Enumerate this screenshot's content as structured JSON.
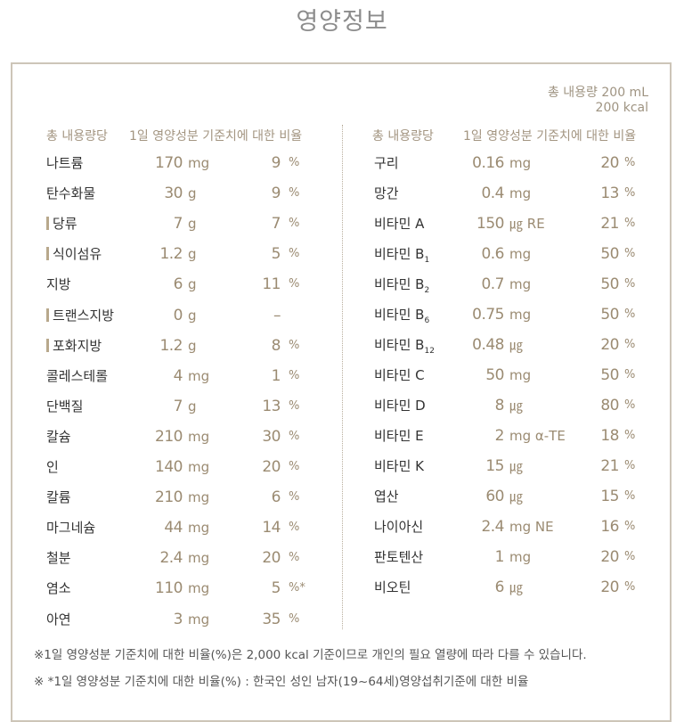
{
  "title": "영양정보",
  "total": {
    "volume": "총 내용량 200 mL",
    "energy": "200 kcal"
  },
  "header": {
    "per": "총 내용량당",
    "ratio": "1일 영양성분 기준치에 대한 비율"
  },
  "left": [
    {
      "name": "나트륨",
      "num": "170",
      "unit": "mg",
      "pct": "9",
      "sign": "%"
    },
    {
      "name": "탄수화물",
      "num": "30",
      "unit": "g",
      "pct": "9",
      "sign": "%"
    },
    {
      "name": "당류",
      "bar": true,
      "num": "7",
      "unit": "g",
      "pct": "7",
      "sign": "%"
    },
    {
      "name": "식이섬유",
      "bar": true,
      "num": "1.2",
      "unit": "g",
      "pct": "5",
      "sign": "%"
    },
    {
      "name": "지방",
      "num": "6",
      "unit": "g",
      "pct": "11",
      "sign": "%"
    },
    {
      "name": "트랜스지방",
      "bar": true,
      "num": "0",
      "unit": "g",
      "pct": "–",
      "sign": ""
    },
    {
      "name": "포화지방",
      "bar": true,
      "num": "1.2",
      "unit": "g",
      "pct": "8",
      "sign": "%"
    },
    {
      "name": "콜레스테롤",
      "num": "4",
      "unit": "mg",
      "pct": "1",
      "sign": "%"
    },
    {
      "name": "단백질",
      "num": "7",
      "unit": "g",
      "pct": "13",
      "sign": "%"
    },
    {
      "name": "칼슘",
      "num": "210",
      "unit": "mg",
      "pct": "30",
      "sign": "%"
    },
    {
      "name": "인",
      "num": "140",
      "unit": "mg",
      "pct": "20",
      "sign": "%"
    },
    {
      "name": "칼륨",
      "num": "210",
      "unit": "mg",
      "pct": "6",
      "sign": "%"
    },
    {
      "name": "마그네슘",
      "num": "44",
      "unit": "mg",
      "pct": "14",
      "sign": "%"
    },
    {
      "name": "철분",
      "num": "2.4",
      "unit": "mg",
      "pct": "20",
      "sign": "%"
    },
    {
      "name": "염소",
      "num": "110",
      "unit": "mg",
      "pct": "5",
      "sign": "%*"
    },
    {
      "name": "아연",
      "num": "3",
      "unit": "mg",
      "pct": "35",
      "sign": "%"
    }
  ],
  "right": [
    {
      "name": "구리",
      "num": "0.16",
      "unit": "mg",
      "pct": "20",
      "sign": "%"
    },
    {
      "name": "망간",
      "num": "0.4",
      "unit": "mg",
      "pct": "13",
      "sign": "%"
    },
    {
      "name": "비타민 A",
      "num": "150",
      "unit": "㎍ RE",
      "pct": "21",
      "sign": "%"
    },
    {
      "name": "비타민 B",
      "sub": "1",
      "num": "0.6",
      "unit": "mg",
      "pct": "50",
      "sign": "%"
    },
    {
      "name": "비타민 B",
      "sub": "2",
      "num": "0.7",
      "unit": "mg",
      "pct": "50",
      "sign": "%"
    },
    {
      "name": "비타민 B",
      "sub": "6",
      "num": "0.75",
      "unit": "mg",
      "pct": "50",
      "sign": "%"
    },
    {
      "name": "비타민 B",
      "sub": "12",
      "num": "0.48",
      "unit": "㎍",
      "pct": "20",
      "sign": "%"
    },
    {
      "name": "비타민 C",
      "num": "50",
      "unit": "mg",
      "pct": "50",
      "sign": "%"
    },
    {
      "name": "비타민 D",
      "num": "8",
      "unit": "㎍",
      "pct": "80",
      "sign": "%"
    },
    {
      "name": "비타민 E",
      "num": "2",
      "unit": "mg α-TE",
      "pct": "18",
      "sign": "%"
    },
    {
      "name": "비타민 K",
      "num": "15",
      "unit": "㎍",
      "pct": "21",
      "sign": "%"
    },
    {
      "name": "엽산",
      "num": "60",
      "unit": "㎍",
      "pct": "15",
      "sign": "%"
    },
    {
      "name": "나이아신",
      "num": "2.4",
      "unit": "mg NE",
      "pct": "16",
      "sign": "%"
    },
    {
      "name": "판토텐산",
      "num": "1",
      "unit": "mg",
      "pct": "20",
      "sign": "%"
    },
    {
      "name": "비오틴",
      "num": "6",
      "unit": "㎍",
      "pct": "20",
      "sign": "%"
    }
  ],
  "notes": [
    "※1일 영양성분 기준치에 대한 비율(%)은 2,000 kcal 기준이므로 개인의 필요 열량에 따라 다를 수 있습니다.",
    "※ *1일 영양성분 기준치에 대한 비율(%) : 한국인 성인 남자(19~64세)영양섭취기준에 대한 비율"
  ]
}
